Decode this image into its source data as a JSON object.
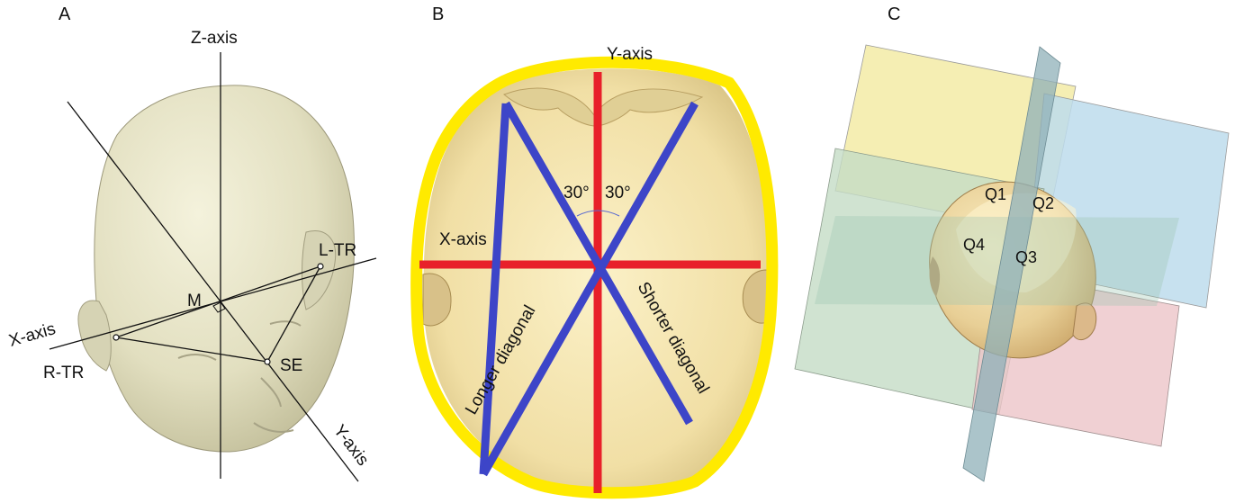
{
  "panels": {
    "a": {
      "letter": "A",
      "z_axis": "Z-axis",
      "x_axis": "X-axis",
      "y_axis": "Y-axis",
      "m": "M",
      "l_tr": "L-TR",
      "r_tr": "R-TR",
      "se": "SE"
    },
    "b": {
      "letter": "B",
      "y_axis": "Y-axis",
      "x_axis": "X-axis",
      "angle_left": "30°",
      "angle_right": "30°",
      "longer_diagonal": "Longer diagonal",
      "shorter_diagonal": "Shorter diagonal"
    },
    "c": {
      "letter": "C",
      "q1": "Q1",
      "q2": "Q2",
      "q3": "Q3",
      "q4": "Q4"
    }
  },
  "colors": {
    "head_skin": "#e6e4c8",
    "outline_yellow": "#ffea00",
    "axis_red": "#e8202a",
    "diagonal_blue": "#3d45c8",
    "plane_yellow": "#f3eba6",
    "plane_blue": "#bddcec",
    "plane_green": "#c4dcc6",
    "plane_pink": "#ecc4c8"
  }
}
